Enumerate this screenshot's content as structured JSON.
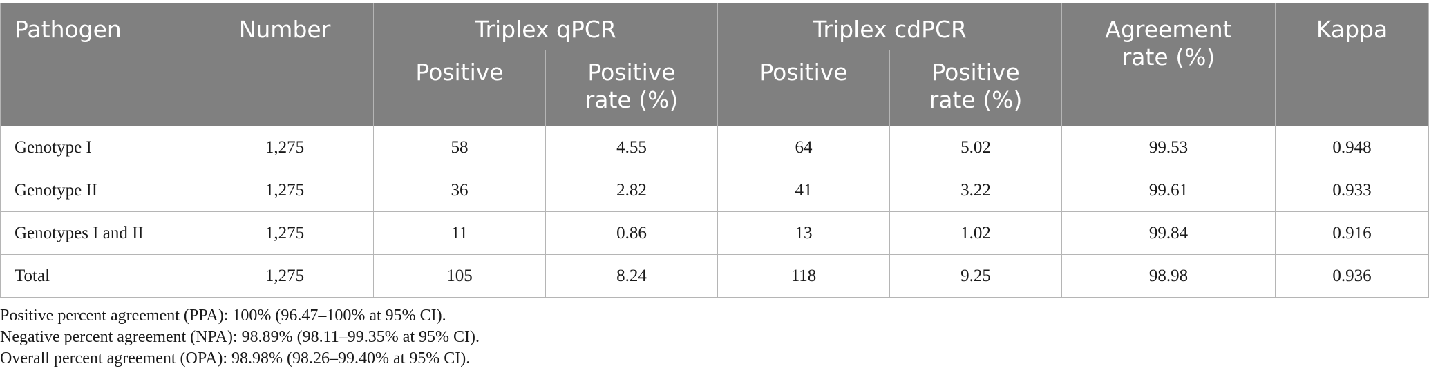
{
  "table": {
    "headers": {
      "pathogen": "Pathogen",
      "number": "Number",
      "qpcr_group": "Triplex qPCR",
      "cdpcr_group": "Triplex cdPCR",
      "agreement_line1": "Agreement",
      "agreement_line2": "rate (%)",
      "kappa": "Kappa",
      "positive": "Positive",
      "positive_rate_line1": "Positive",
      "positive_rate_line2": "rate (%)"
    },
    "rows": [
      {
        "pathogen": "Genotype I",
        "number": "1,275",
        "qpcr_positive": "58",
        "qpcr_rate": "4.55",
        "cdpcr_positive": "64",
        "cdpcr_rate": "5.02",
        "agreement": "99.53",
        "kappa": "0.948"
      },
      {
        "pathogen": "Genotype II",
        "number": "1,275",
        "qpcr_positive": "36",
        "qpcr_rate": "2.82",
        "cdpcr_positive": "41",
        "cdpcr_rate": "3.22",
        "agreement": "99.61",
        "kappa": "0.933"
      },
      {
        "pathogen": "Genotypes I and II",
        "number": "1,275",
        "qpcr_positive": "11",
        "qpcr_rate": "0.86",
        "cdpcr_positive": "13",
        "cdpcr_rate": "1.02",
        "agreement": "99.84",
        "kappa": "0.916"
      },
      {
        "pathogen": "Total",
        "number": "1,275",
        "qpcr_positive": "105",
        "qpcr_rate": "8.24",
        "cdpcr_positive": "118",
        "cdpcr_rate": "9.25",
        "agreement": "98.98",
        "kappa": "0.936"
      }
    ]
  },
  "footnotes": [
    "Positive percent agreement (PPA): 100% (96.47–100% at 95% CI).",
    "Negative percent agreement (NPA): 98.89% (98.11–99.35% at 95% CI).",
    "Overall percent agreement (OPA): 98.98% (98.26–99.40% at 95% CI)."
  ]
}
